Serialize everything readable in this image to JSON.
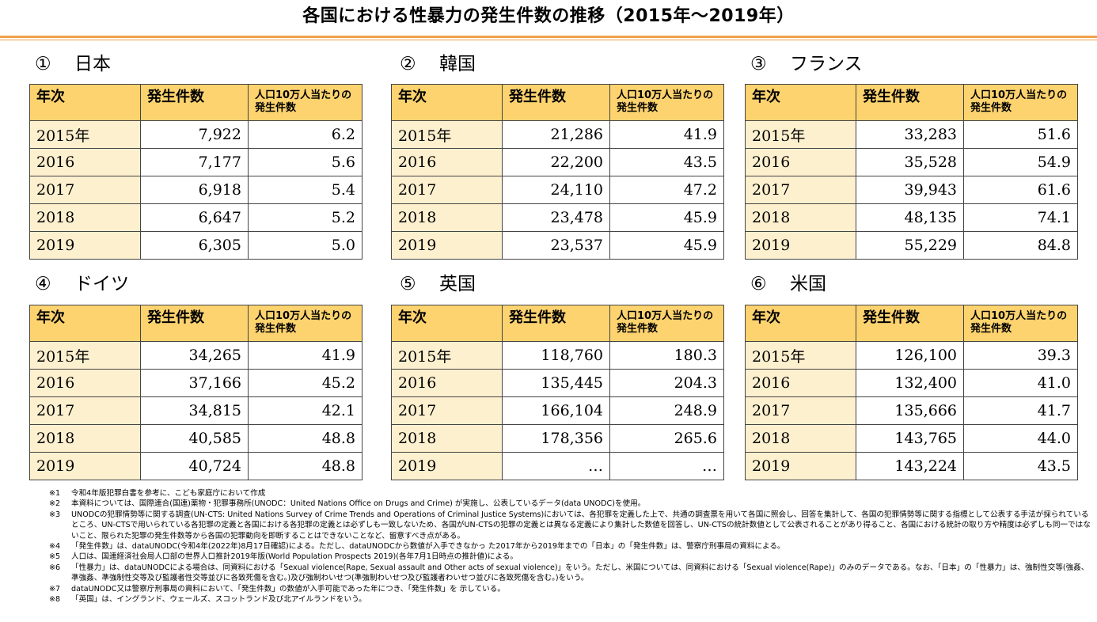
{
  "page_title": "各国における性暴力の発生件数の推移（2015年～2019年）",
  "header": {
    "col_year": "年次",
    "col_count": "発生件数",
    "col_rate": "人口10万人当たりの発生件数"
  },
  "countries": [
    {
      "num": "①",
      "name": "日本",
      "rows": [
        {
          "year": "2015年",
          "count": "7,922",
          "rate": "6.2"
        },
        {
          "year": "2016",
          "count": "7,177",
          "rate": "5.6"
        },
        {
          "year": "2017",
          "count": "6,918",
          "rate": "5.4"
        },
        {
          "year": "2018",
          "count": "6,647",
          "rate": "5.2"
        },
        {
          "year": "2019",
          "count": "6,305",
          "rate": "5.0"
        }
      ]
    },
    {
      "num": "②",
      "name": "韓国",
      "rows": [
        {
          "year": "2015年",
          "count": "21,286",
          "rate": "41.9"
        },
        {
          "year": "2016",
          "count": "22,200",
          "rate": "43.5"
        },
        {
          "year": "2017",
          "count": "24,110",
          "rate": "47.2"
        },
        {
          "year": "2018",
          "count": "23,478",
          "rate": "45.9"
        },
        {
          "year": "2019",
          "count": "23,537",
          "rate": "45.9"
        }
      ]
    },
    {
      "num": "③",
      "name": "フランス",
      "rows": [
        {
          "year": "2015年",
          "count": "33,283",
          "rate": "51.6"
        },
        {
          "year": "2016",
          "count": "35,528",
          "rate": "54.9"
        },
        {
          "year": "2017",
          "count": "39,943",
          "rate": "61.6"
        },
        {
          "year": "2018",
          "count": "48,135",
          "rate": "74.1"
        },
        {
          "year": "2019",
          "count": "55,229",
          "rate": "84.8"
        }
      ]
    },
    {
      "num": "④",
      "name": "ドイツ",
      "rows": [
        {
          "year": "2015年",
          "count": "34,265",
          "rate": "41.9"
        },
        {
          "year": "2016",
          "count": "37,166",
          "rate": "45.2"
        },
        {
          "year": "2017",
          "count": "34,815",
          "rate": "42.1"
        },
        {
          "year": "2018",
          "count": "40,585",
          "rate": "48.8"
        },
        {
          "year": "2019",
          "count": "40,724",
          "rate": "48.8"
        }
      ]
    },
    {
      "num": "⑤",
      "name": "英国",
      "rows": [
        {
          "year": "2015年",
          "count": "118,760",
          "rate": "180.3"
        },
        {
          "year": "2016",
          "count": "135,445",
          "rate": "204.3"
        },
        {
          "year": "2017",
          "count": "166,104",
          "rate": "248.9"
        },
        {
          "year": "2018",
          "count": "178,356",
          "rate": "265.6"
        },
        {
          "year": "2019",
          "count": "…",
          "rate": "…"
        }
      ]
    },
    {
      "num": "⑥",
      "name": "米国",
      "rows": [
        {
          "year": "2015年",
          "count": "126,100",
          "rate": "39.3"
        },
        {
          "year": "2016",
          "count": "132,400",
          "rate": "41.0"
        },
        {
          "year": "2017",
          "count": "135,666",
          "rate": "41.7"
        },
        {
          "year": "2018",
          "count": "143,765",
          "rate": "44.0"
        },
        {
          "year": "2019",
          "count": "143,224",
          "rate": "43.5"
        }
      ]
    }
  ],
  "notes": [
    {
      "mark": "※1",
      "text": "令和4年版犯罪白書を参考に、こども家庭庁において作成"
    },
    {
      "mark": "※2",
      "text": "本資料については、国際連合(国連)薬物・犯罪事務所(UNODC：United Nations Office on Drugs and Crime) が実施し、公表しているデータ(data UNODC)を使用。"
    },
    {
      "mark": "※3",
      "text": "UNODCの犯罪情勢等に関する調査(UN-CTS: United Nations Survey of Crime Trends and Operations of Criminal Justice Systems)においては、各犯罪を定義した上で、共通の調査票を用いて各国に照会し、回答を集計して、各国の犯罪情勢等に関する指標として公表する手法が採られているところ、UN-CTSで用いられている各犯罪の定義と各国における各犯罪の定義とは必ずしも一致しないため、各国がUN-CTSの犯罪の定義とは異なる定義により集計した数値を回答し、UN-CTSの統計数値として公表されることがあり得ること、各国における統計の取り方や精度は必ずしも同一ではないこと、限られた犯罪の発生件数等から各国の犯罪動向を即断することはできないことなど、留意すべき点がある。"
    },
    {
      "mark": "※4",
      "text": "「発生件数」は、dataUNODC(令和4年(2022年)8月17日確認)による。ただし、dataUNODCから数値が入手できなかっ た2017年から2019年までの「日本」の「発生件数」は、警察庁刑事局の資料による。"
    },
    {
      "mark": "※5",
      "text": "人口は、国連経済社会局人口部の世界人口推計2019年版(World Population Prospects 2019)(各年7月1日時点の推計値)による。"
    },
    {
      "mark": "※6",
      "text": "「性暴力」は、dataUNODCによる場合は、同資料における「Sexual violence(Rape, Sexual assault and Other acts of sexual violence)」をいう。ただし、米国については、同資料における「Sexual violence(Rape)」のみのデータである。なお、「日本」の「性暴力」は、強制性交等(強姦、準強姦、準強制性交等及び監護者性交等並びに各致死傷を含む。)及び強制わいせつ(準強制わいせつ及び監護者わいせつ並びに各致死傷を含む。)をいう。"
    },
    {
      "mark": "※7",
      "text": "dataUNODC又は警察庁刑事局の資料において、「発生件数」の数値が入手可能であった年につき、「発生件数」を 示している。"
    },
    {
      "mark": "※8",
      "text": "「英国」は、イングランド、ウェールズ、スコットランド及び北アイルランドをいう。"
    }
  ]
}
